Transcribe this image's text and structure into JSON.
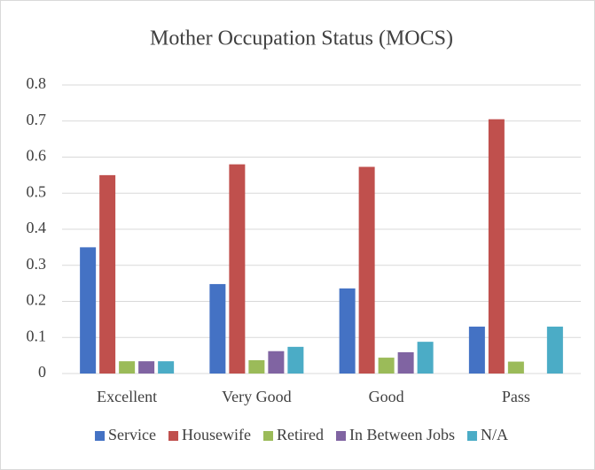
{
  "chart_data": {
    "type": "bar",
    "title": "Mother Occupation Status (MOCS)",
    "categories": [
      "Excellent",
      "Very Good",
      "Good",
      "Pass"
    ],
    "series": [
      {
        "name": "Service",
        "color": "#4472c4",
        "values": [
          0.35,
          0.248,
          0.236,
          0.13
        ]
      },
      {
        "name": "Housewife",
        "color": "#c0504d",
        "values": [
          0.55,
          0.58,
          0.573,
          0.705
        ]
      },
      {
        "name": "Retired",
        "color": "#9bbb59",
        "values": [
          0.034,
          0.037,
          0.044,
          0.033
        ]
      },
      {
        "name": "In Between Jobs",
        "color": "#8064a2",
        "values": [
          0.034,
          0.062,
          0.059,
          0
        ]
      },
      {
        "name": "N/A",
        "color": "#4bacc6",
        "values": [
          0.034,
          0.074,
          0.088,
          0.13
        ]
      }
    ],
    "ylim": [
      0,
      0.8
    ],
    "yticks": [
      0,
      0.1,
      0.2,
      0.3,
      0.4,
      0.5,
      0.6,
      0.7,
      0.8
    ],
    "grid": true,
    "legend": "bottom"
  }
}
